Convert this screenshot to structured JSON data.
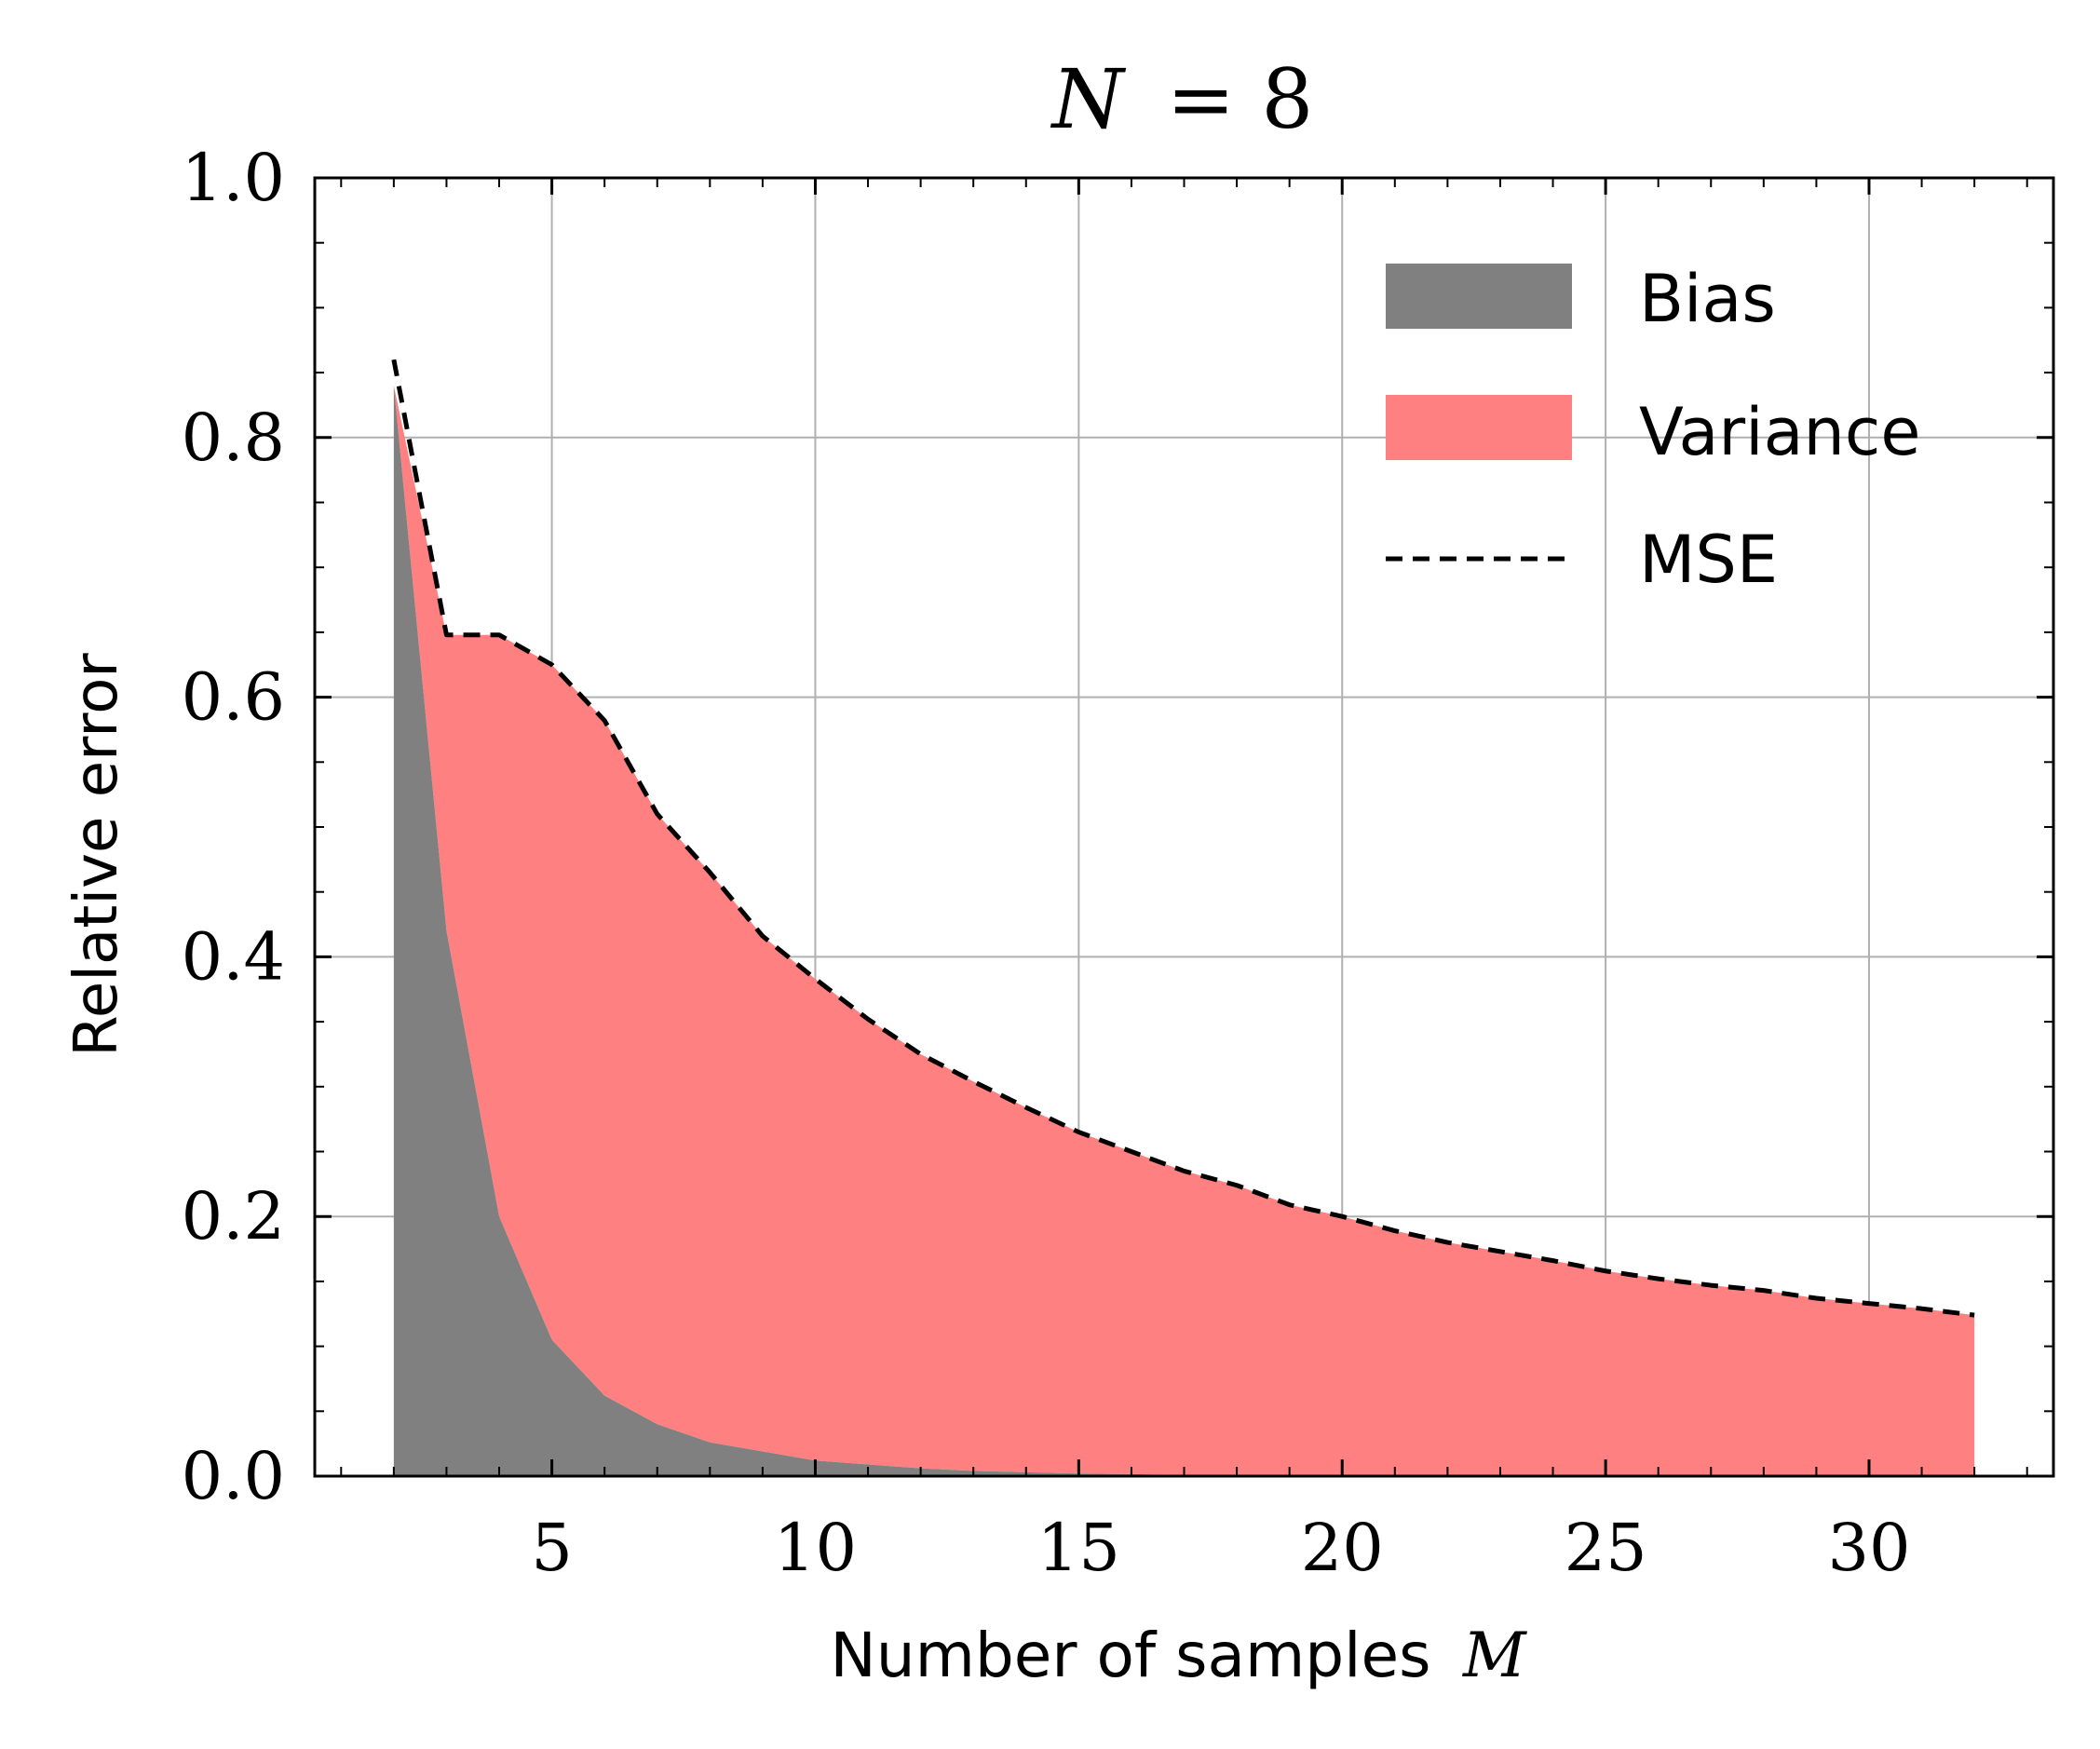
{
  "chart_data": {
    "type": "area",
    "title": "N = 8",
    "title_variable": "N",
    "title_value": "= 8",
    "xlabel": "Number of samples",
    "xlabel_variable": "M",
    "ylabel": "Relative error",
    "xlim": [
      0.5,
      33.5
    ],
    "ylim": [
      0.0,
      1.0
    ],
    "grid": true,
    "legend_position": "top-right",
    "x_ticks": [
      5,
      10,
      15,
      20,
      25,
      30
    ],
    "x_tick_labels": [
      "5",
      "10",
      "15",
      "20",
      "25",
      "30"
    ],
    "y_ticks": [
      0.0,
      0.2,
      0.4,
      0.6,
      0.8,
      1.0
    ],
    "y_tick_labels": [
      "0.0",
      "0.2",
      "0.4",
      "0.6",
      "0.8",
      "1.0"
    ],
    "x": [
      2,
      3,
      4,
      5,
      6,
      7,
      8,
      9,
      10,
      11,
      12,
      13,
      14,
      15,
      16,
      17,
      18,
      19,
      20,
      21,
      22,
      23,
      24,
      25,
      26,
      27,
      28,
      29,
      30,
      31,
      32
    ],
    "series": [
      {
        "name": "Bias",
        "style": "filled area",
        "color": "#808080",
        "values": [
          0.84,
          0.42,
          0.2,
          0.105,
          0.062,
          0.04,
          0.026,
          0.019,
          0.012,
          0.009,
          0.006,
          0.004,
          0.003,
          0.002,
          0.0015,
          0.001,
          0.001,
          0.0008,
          0.0006,
          0.0005,
          0.0004,
          0.0003,
          0.0003,
          0.0002,
          0.0002,
          0.0002,
          0.0001,
          0.0001,
          0.0001,
          0.0001,
          0.0001
        ]
      },
      {
        "name": "Variance",
        "style": "filled area stacked on Bias",
        "color": "#ff8080",
        "values": [
          0.0,
          0.228,
          0.448,
          0.52,
          0.52,
          0.47,
          0.439,
          0.397,
          0.371,
          0.343,
          0.319,
          0.3,
          0.281,
          0.263,
          0.2485,
          0.234,
          0.223,
          0.2082,
          0.1994,
          0.1885,
          0.1796,
          0.1727,
          0.1657,
          0.1578,
          0.1518,
          0.1468,
          0.1429,
          0.1369,
          0.1329,
          0.1289,
          0.1239
        ]
      },
      {
        "name": "MSE",
        "style": "dashed line",
        "color": "#000000",
        "values": [
          0.86,
          0.648,
          0.648,
          0.625,
          0.582,
          0.51,
          0.465,
          0.416,
          0.383,
          0.352,
          0.325,
          0.304,
          0.284,
          0.265,
          0.25,
          0.235,
          0.224,
          0.209,
          0.2,
          0.189,
          0.18,
          0.173,
          0.166,
          0.158,
          0.152,
          0.147,
          0.143,
          0.137,
          0.133,
          0.129,
          0.124
        ]
      }
    ]
  }
}
